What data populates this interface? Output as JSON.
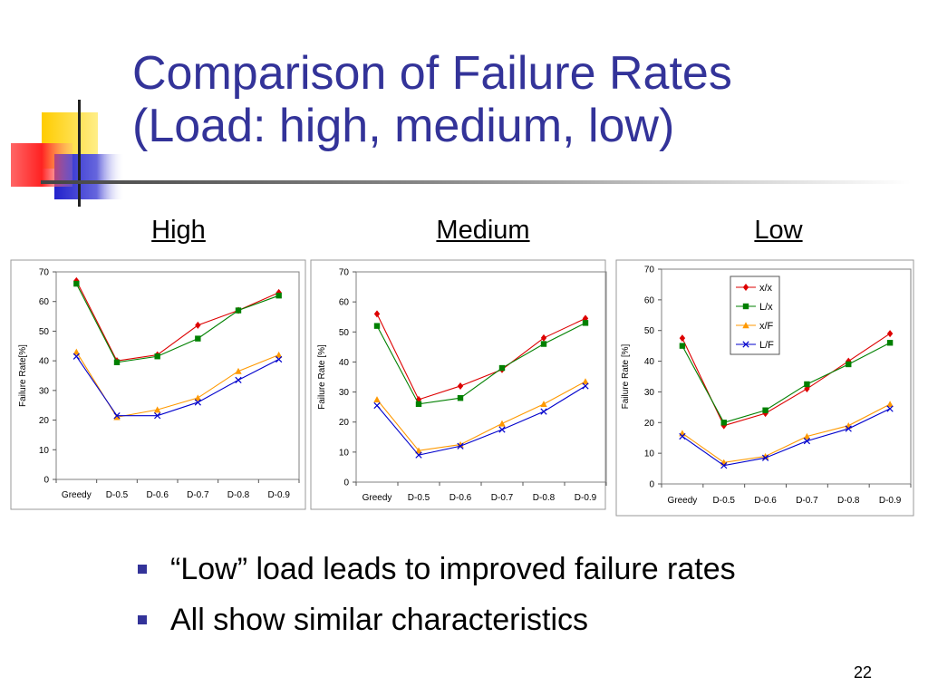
{
  "slide": {
    "title_line1": "Comparison of Failure Rates",
    "title_line2": "(Load: high, medium, low)",
    "bullets": [
      "“Low” load leads to improved failure rates",
      "All show similar characteristics"
    ],
    "page_number": "22",
    "colors": {
      "title": "#333399",
      "logo_yellow": "#ffcc00",
      "logo_red": "#ff3333",
      "logo_blue": "#3333cc"
    }
  },
  "chart_data": [
    {
      "type": "line",
      "label": "High",
      "categories": [
        "Greedy",
        "D-0.5",
        "D-0.6",
        "D-0.7",
        "D-0.8",
        "D-0.9"
      ],
      "ylabel": "Failure Rate[%]",
      "ylim": [
        0,
        70
      ],
      "yticks": [
        0,
        10,
        20,
        30,
        40,
        50,
        60,
        70
      ],
      "grid": false,
      "legend": "none",
      "series": [
        {
          "name": "x/x",
          "color": "#dd0000",
          "marker": "diamond",
          "values": [
            67,
            40,
            42,
            52,
            57,
            63
          ]
        },
        {
          "name": "L/x",
          "color": "#008000",
          "marker": "square",
          "values": [
            66,
            39.5,
            41.5,
            47.5,
            57,
            62
          ]
        },
        {
          "name": "x/F",
          "color": "#ff9900",
          "marker": "triangle",
          "values": [
            43,
            21,
            23.5,
            27.5,
            36.5,
            42
          ]
        },
        {
          "name": "L/F",
          "color": "#0000cc",
          "marker": "x",
          "values": [
            41.5,
            21.5,
            21.5,
            26,
            33.5,
            40.5
          ]
        }
      ]
    },
    {
      "type": "line",
      "label": "Medium",
      "categories": [
        "Greedy",
        "D-0.5",
        "D-0.6",
        "D-0.7",
        "D-0.8",
        "D-0.9"
      ],
      "ylabel": "Failure Rate [%]",
      "ylim": [
        0,
        70
      ],
      "yticks": [
        0,
        10,
        20,
        30,
        40,
        50,
        60,
        70
      ],
      "grid": false,
      "legend": "none",
      "series": [
        {
          "name": "x/x",
          "color": "#dd0000",
          "marker": "diamond",
          "values": [
            56,
            27.5,
            32,
            37.5,
            48,
            54.5
          ]
        },
        {
          "name": "L/x",
          "color": "#008000",
          "marker": "square",
          "values": [
            52,
            26,
            28,
            38,
            46,
            53
          ]
        },
        {
          "name": "x/F",
          "color": "#ff9900",
          "marker": "triangle",
          "values": [
            27.5,
            10.5,
            12.5,
            19.5,
            26,
            33.5
          ]
        },
        {
          "name": "L/F",
          "color": "#0000cc",
          "marker": "x",
          "values": [
            25.5,
            9,
            12,
            17.5,
            23.5,
            32
          ]
        }
      ]
    },
    {
      "type": "line",
      "label": "Low",
      "categories": [
        "Greedy",
        "D-0.5",
        "D-0.6",
        "D-0.7",
        "D-0.8",
        "D-0.9"
      ],
      "ylabel": "Failure Rate [%]",
      "ylim": [
        0,
        70
      ],
      "yticks": [
        0,
        10,
        20,
        30,
        40,
        50,
        60,
        70
      ],
      "grid": false,
      "legend": "top-right",
      "series": [
        {
          "name": "x/x",
          "color": "#dd0000",
          "marker": "diamond",
          "values": [
            47.5,
            19,
            23,
            31,
            40,
            49
          ]
        },
        {
          "name": "L/x",
          "color": "#008000",
          "marker": "square",
          "values": [
            45,
            20,
            24,
            32.5,
            39,
            46
          ]
        },
        {
          "name": "x/F",
          "color": "#ff9900",
          "marker": "triangle",
          "values": [
            16.5,
            7,
            9,
            15.5,
            19,
            26
          ]
        },
        {
          "name": "L/F",
          "color": "#0000cc",
          "marker": "x",
          "values": [
            15.5,
            6,
            8.5,
            14,
            18,
            24.5
          ]
        }
      ]
    }
  ]
}
